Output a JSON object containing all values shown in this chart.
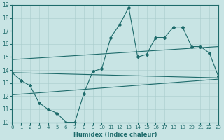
{
  "xlabel": "Humidex (Indice chaleur)",
  "xlim": [
    0,
    23
  ],
  "ylim": [
    10,
    19
  ],
  "xticks": [
    0,
    1,
    2,
    3,
    4,
    5,
    6,
    7,
    8,
    9,
    10,
    11,
    12,
    13,
    14,
    15,
    16,
    17,
    18,
    19,
    20,
    21,
    22,
    23
  ],
  "yticks": [
    10,
    11,
    12,
    13,
    14,
    15,
    16,
    17,
    18,
    19
  ],
  "bg_color": "#c8e4e4",
  "line_color": "#1e6b6b",
  "grid_color": "#a8cccc",
  "line1_x": [
    0,
    1,
    2,
    3,
    4,
    5,
    6,
    7,
    8,
    9,
    10,
    11,
    12,
    13,
    14,
    15,
    16,
    17,
    18,
    19,
    20,
    21,
    22,
    23
  ],
  "line1_y": [
    13.8,
    13.2,
    12.8,
    11.5,
    11.0,
    10.7,
    10.0,
    10.0,
    12.2,
    13.9,
    14.1,
    16.5,
    17.5,
    18.8,
    15.0,
    15.2,
    16.5,
    16.5,
    17.3,
    17.3,
    15.8,
    15.8,
    15.3,
    13.5
  ],
  "line2_x": [
    0,
    23
  ],
  "line2_y": [
    13.8,
    13.4
  ],
  "line3_x": [
    0,
    23
  ],
  "line3_y": [
    14.8,
    15.8
  ],
  "line4_x": [
    0,
    23
  ],
  "line4_y": [
    12.1,
    13.3
  ]
}
